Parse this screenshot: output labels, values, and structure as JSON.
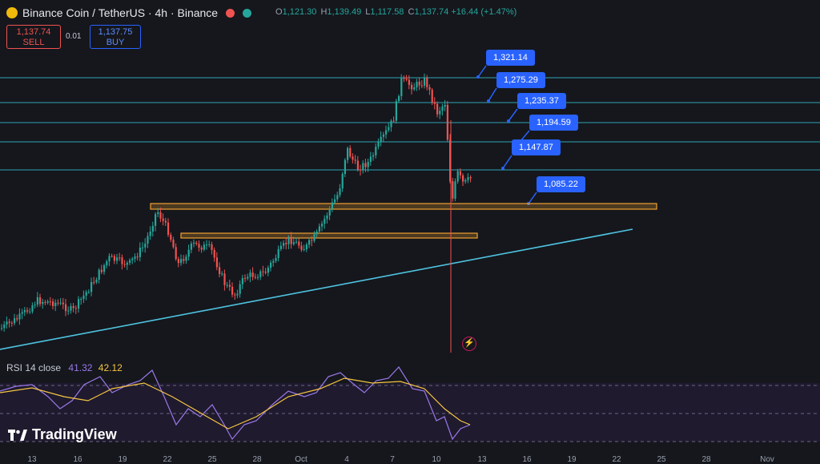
{
  "header": {
    "symbol_title": "Binance Coin / TetherUS · 4h · Binance",
    "ohlc": {
      "open_label": "O",
      "open": "1,121.30",
      "high_label": "H",
      "high": "1,139.49",
      "low_label": "L",
      "low": "1,117.58",
      "close_label": "C",
      "close": "1,137.74",
      "change": "+16.44 (+1.47%)"
    }
  },
  "trade": {
    "sell_price": "1,137.74",
    "sell_label": "SELL",
    "spread": "0.01",
    "buy_price": "1,137.75",
    "buy_label": "BUY"
  },
  "price_levels": [
    "1,321.14",
    "1,275.29",
    "1,235.37",
    "1,194.59",
    "1,147.87",
    "1,085.22"
  ],
  "rsi": {
    "label": "RSI 14 close",
    "value1": "41.32",
    "value2": "42.12"
  },
  "watermark": "TradingView",
  "x_axis": [
    "13",
    "16",
    "19",
    "22",
    "25",
    "28",
    "Oct",
    "4",
    "7",
    "10",
    "13",
    "16",
    "19",
    "22",
    "25",
    "28",
    "Nov"
  ],
  "colors": {
    "up": "#26a69a",
    "down": "#ef5350",
    "level_line": "#2fa3b4",
    "zone": "#f0a030",
    "trendline": "#4fc3e0",
    "rsi": "#9a79e8",
    "rsi_ma": "#f5c542",
    "callout": "#2962ff"
  }
}
